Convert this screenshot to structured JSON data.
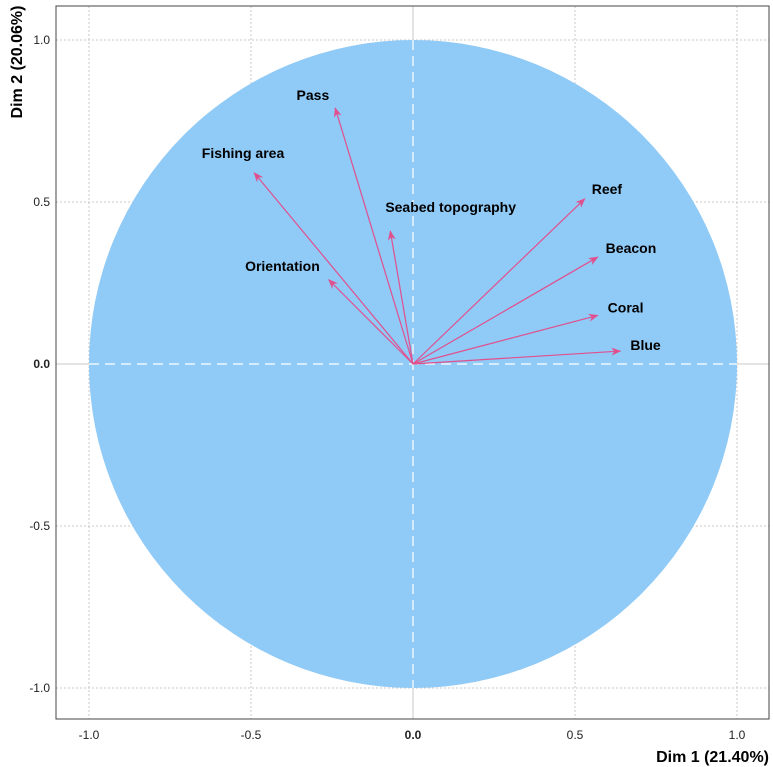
{
  "chart_data": {
    "type": "scatter",
    "subtype": "pca-correlation-circle",
    "xlabel": "Dim 1 (21.40%)",
    "ylabel": "Dim 2 (20.06%)",
    "xlim": [
      -1.0,
      1.0
    ],
    "ylim": [
      -1.0,
      1.0
    ],
    "x_ticks": [
      "-1.0",
      "-0.5",
      "0.0",
      "0.5",
      "1.0"
    ],
    "y_ticks": [
      "-1.0",
      "-0.5",
      "0.0",
      "0.5",
      "1.0"
    ],
    "x_tick_values": [
      -1.0,
      -0.5,
      0.0,
      0.5,
      1.0
    ],
    "y_tick_values": [
      -1.0,
      -0.5,
      0.0,
      0.5,
      1.0
    ],
    "grid": true,
    "variables": [
      {
        "name": "Pass",
        "x": -0.24,
        "y": 0.79
      },
      {
        "name": "Fishing area",
        "x": -0.49,
        "y": 0.59
      },
      {
        "name": "Seabed topography",
        "x": -0.07,
        "y": 0.41
      },
      {
        "name": "Orientation",
        "x": -0.26,
        "y": 0.26
      },
      {
        "name": "Reef",
        "x": 0.53,
        "y": 0.51
      },
      {
        "name": "Beacon",
        "x": 0.57,
        "y": 0.33
      },
      {
        "name": "Coral",
        "x": 0.57,
        "y": 0.15
      },
      {
        "name": "Blue",
        "x": 0.64,
        "y": 0.04
      }
    ]
  },
  "colors": {
    "circle_fill": "#90CAF6",
    "arrow": "#E0508E",
    "grid": "#c8c8c8",
    "axis_dash": "#ffffff"
  }
}
